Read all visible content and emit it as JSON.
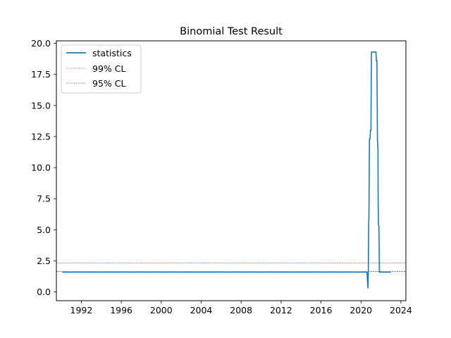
{
  "chart_data": {
    "type": "line",
    "title": "Binomial Test Result",
    "xlabel": "",
    "ylabel": "",
    "xlim": [
      1989.5,
      2024.5
    ],
    "ylim": [
      -0.7,
      20.2
    ],
    "x_ticks": [
      1992,
      1996,
      2000,
      2004,
      2008,
      2012,
      2016,
      2020,
      2024
    ],
    "x_tick_labels": [
      "1992",
      "1996",
      "2000",
      "2004",
      "2008",
      "2012",
      "2016",
      "2020",
      "2024"
    ],
    "y_ticks": [
      0.0,
      2.5,
      5.0,
      7.5,
      10.0,
      12.5,
      15.0,
      17.5,
      20.0
    ],
    "y_tick_labels": [
      "0.0",
      "2.5",
      "5.0",
      "7.5",
      "10.0",
      "12.5",
      "15.0",
      "17.5",
      "20.0"
    ],
    "grid": false,
    "legend": {
      "position": "top-left",
      "entries": [
        {
          "label": "statistics",
          "color": "#1f77b4",
          "style": "solid"
        },
        {
          "label": "99% CL",
          "color": "#d62728",
          "style": "dashed"
        },
        {
          "label": "95% CL",
          "color": "#1a1aa6",
          "style": "dashed"
        }
      ]
    },
    "series": [
      {
        "name": "statistics",
        "color": "#1f77b4",
        "x": [
          1990.1,
          2020.6,
          2020.65,
          2020.7,
          2020.73,
          2020.77,
          2020.8,
          2020.85,
          2020.9,
          2020.95,
          2021.0,
          2021.05,
          2021.1,
          2021.2,
          2021.5,
          2021.55,
          2021.6,
          2021.65,
          2021.7,
          2021.72,
          2021.75,
          2021.8,
          2021.85,
          2021.9,
          2023.0
        ],
        "y": [
          1.6,
          1.6,
          0.9,
          0.3,
          1.2,
          5.3,
          6.3,
          12.3,
          12.3,
          13.0,
          13.0,
          19.3,
          19.3,
          19.3,
          19.3,
          18.6,
          18.6,
          12.3,
          11.5,
          7.5,
          5.4,
          5.3,
          1.6,
          1.6,
          1.6
        ]
      }
    ],
    "hlines": [
      {
        "name": "99% CL",
        "y": 2.33,
        "color": "#d62728",
        "style": "dashed"
      },
      {
        "name": "95% CL",
        "y": 1.64,
        "color": "#1a1aa6",
        "style": "dashed"
      }
    ]
  }
}
